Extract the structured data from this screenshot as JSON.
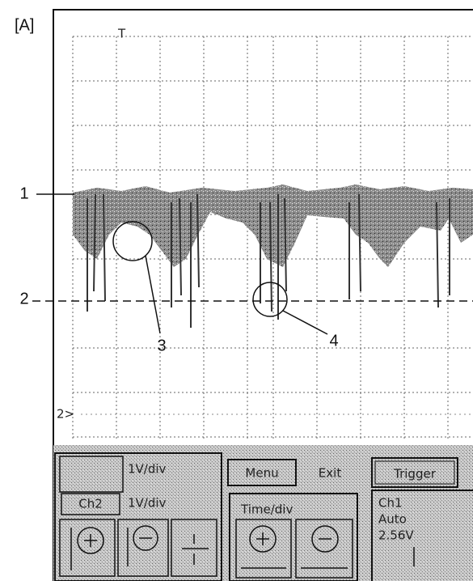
{
  "figure_label": "[A]",
  "screen": {
    "trigger_marker": "T",
    "channel_marker": "2>"
  },
  "callouts": [
    "1",
    "2",
    "3",
    "4"
  ],
  "panel": {
    "ch1_scale": "1V/div",
    "ch2_label": "Ch2",
    "ch2_scale": "1V/div",
    "menu": "Menu",
    "exit": "Exit",
    "trigger": "Trigger",
    "time_div": "Time/div",
    "trigger_source": "Ch1",
    "trigger_mode": "Auto",
    "trigger_level": "2.56V"
  }
}
